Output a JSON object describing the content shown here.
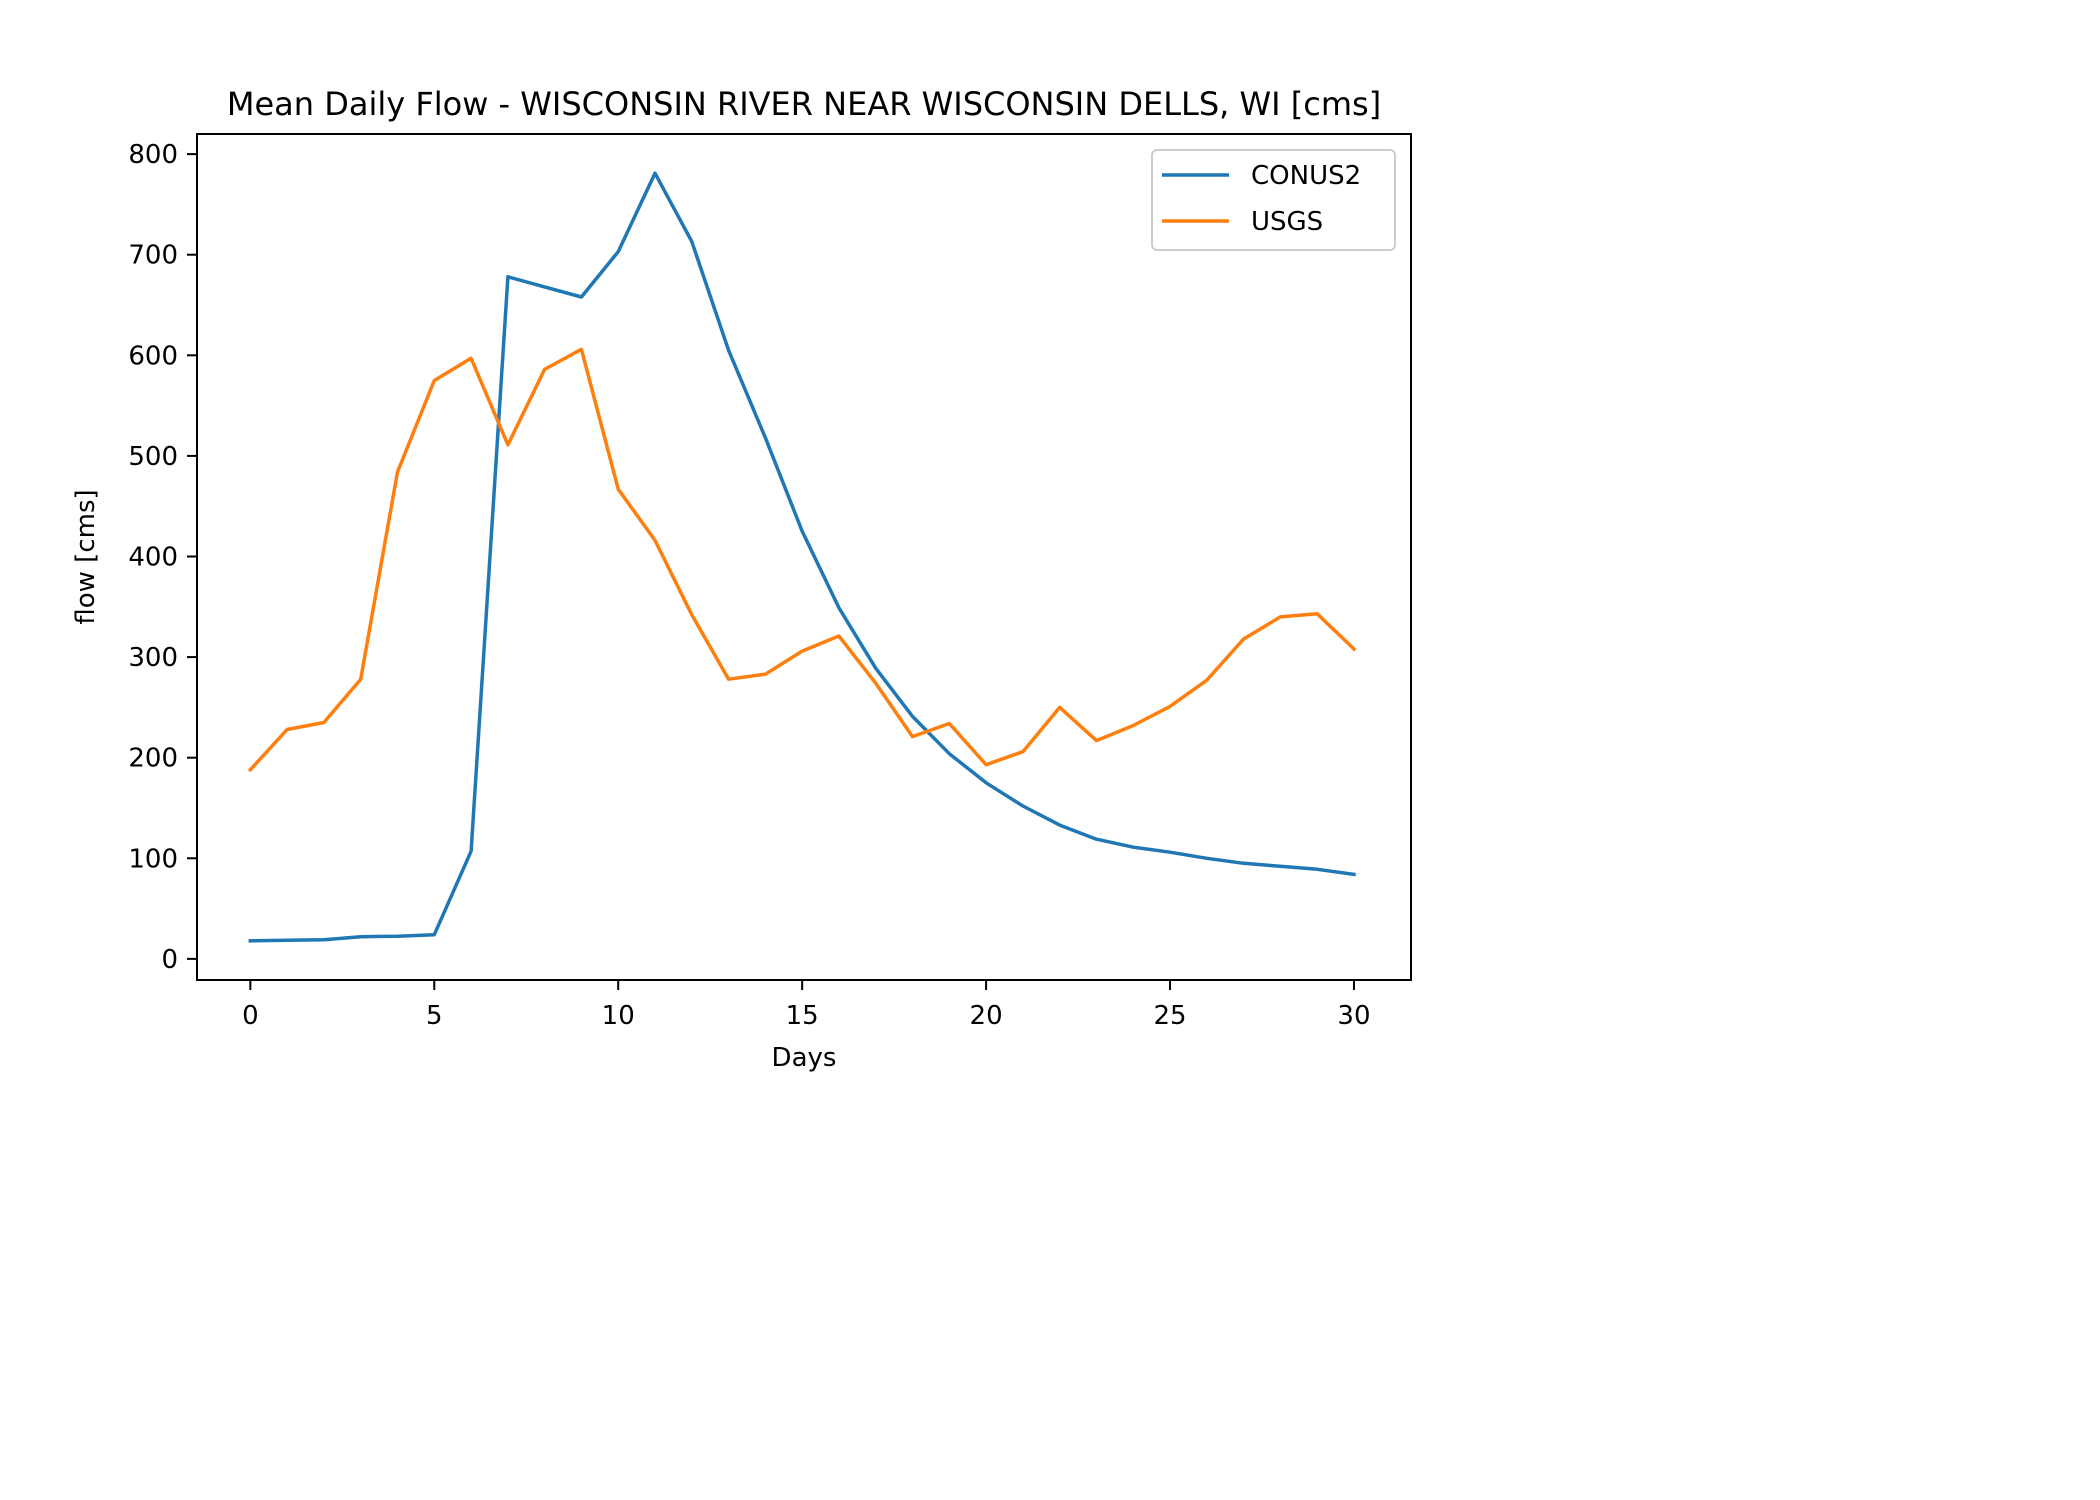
{
  "chart_data": {
    "type": "line",
    "title": "Mean Daily Flow - WISCONSIN RIVER NEAR WISCONSIN DELLS, WI [cms]",
    "xlabel": "Days",
    "ylabel": "flow [cms]",
    "xlim": [
      -1.45,
      31.55
    ],
    "ylim": [
      -21,
      820
    ],
    "xticks": [
      0,
      5,
      10,
      15,
      20,
      25,
      30
    ],
    "yticks": [
      0,
      100,
      200,
      300,
      400,
      500,
      600,
      700,
      800
    ],
    "grid": false,
    "legend": "upper right",
    "x": [
      0,
      1,
      2,
      3,
      4,
      5,
      6,
      7,
      8,
      9,
      10,
      11,
      12,
      13,
      14,
      15,
      16,
      17,
      18,
      19,
      20,
      21,
      22,
      23,
      24,
      25,
      26,
      27,
      28,
      29,
      30
    ],
    "series": [
      {
        "name": "CONUS2",
        "color": "#1f77b4",
        "values": [
          18,
          18.5,
          19,
          22,
          22.5,
          24,
          107,
          678,
          668,
          658,
          703,
          781,
          713,
          605,
          518,
          425,
          349,
          289,
          241,
          204,
          175,
          152,
          133,
          119,
          111,
          106,
          100,
          95,
          92,
          89,
          84
        ]
      },
      {
        "name": "USGS",
        "color": "#ff7f0e",
        "values": [
          188,
          228,
          235,
          278,
          484,
          575,
          597,
          511,
          586,
          606,
          467,
          416,
          342,
          278,
          283,
          306,
          321,
          274,
          221,
          234,
          193,
          206,
          250,
          217,
          232,
          251,
          277,
          318,
          340,
          343,
          308
        ]
      }
    ]
  }
}
